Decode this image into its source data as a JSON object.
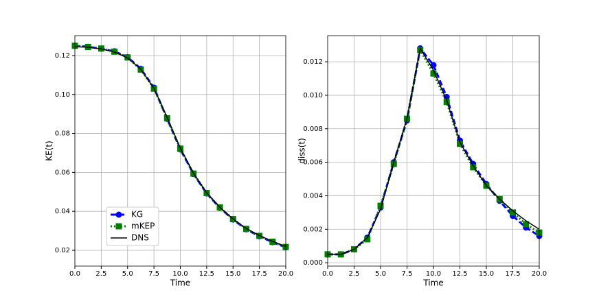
{
  "chart_data": [
    {
      "type": "line",
      "xlabel": "Time",
      "ylabel": "KE(t)",
      "x": [
        0,
        1.25,
        2.5,
        3.75,
        5,
        6.25,
        7.5,
        8.75,
        10,
        11.25,
        12.5,
        13.75,
        15,
        16.25,
        17.5,
        18.75,
        20
      ],
      "series": [
        {
          "name": "KG",
          "color": "#0000ff",
          "values": [
            0.125,
            0.1245,
            0.1235,
            0.1222,
            0.1192,
            0.1132,
            0.1035,
            0.0875,
            0.0718,
            0.0592,
            0.0492,
            0.0418,
            0.0358,
            0.0308,
            0.0272,
            0.0242,
            0.0215
          ]
        },
        {
          "name": "mKEP",
          "color": "#008000",
          "values": [
            0.125,
            0.1244,
            0.1236,
            0.122,
            0.119,
            0.1128,
            0.103,
            0.0878,
            0.0722,
            0.0594,
            0.0494,
            0.042,
            0.036,
            0.031,
            0.0274,
            0.0244,
            0.0217
          ]
        },
        {
          "name": "DNS",
          "color": "#000000",
          "values": [
            0.1245,
            0.1243,
            0.1234,
            0.1218,
            0.1188,
            0.113,
            0.1032,
            0.0882,
            0.0725,
            0.0596,
            0.0495,
            0.0421,
            0.0361,
            0.0312,
            0.0276,
            0.0246,
            0.022
          ]
        }
      ],
      "xlim": [
        0,
        20
      ],
      "ylim": [
        0.0119,
        0.1302
      ],
      "xticks": [
        {
          "value": 0,
          "label": "0.0"
        },
        {
          "value": 2.5,
          "label": "2.5"
        },
        {
          "value": 5,
          "label": "5.0"
        },
        {
          "value": 7.5,
          "label": "7.5"
        },
        {
          "value": 10,
          "label": "10.0"
        },
        {
          "value": 12.5,
          "label": "12.5"
        },
        {
          "value": 15,
          "label": "15.0"
        },
        {
          "value": 17.5,
          "label": "17.5"
        },
        {
          "value": 20,
          "label": "20.0"
        }
      ],
      "yticks": [
        0.02,
        0.04,
        0.06,
        0.08,
        {
          "value": 0.1,
          "label": "0.10"
        },
        0.12
      ],
      "grid": true,
      "legend": "lower left"
    },
    {
      "type": "line",
      "xlabel": "Time",
      "ylabel": "diss(t)",
      "x": [
        0,
        1.25,
        2.5,
        3.75,
        5,
        6.25,
        7.5,
        8.75,
        10,
        11.25,
        12.5,
        13.75,
        15,
        16.25,
        17.5,
        18.75,
        20
      ],
      "series": [
        {
          "color": "#0000ff",
          "values": [
            0.0005,
            0.0005,
            0.0008,
            0.0015,
            0.0033,
            0.006,
            0.0085,
            0.0128,
            0.0118,
            0.0099,
            0.0073,
            0.0059,
            0.0047,
            0.0037,
            0.0028,
            0.0021,
            0.0016
          ]
        },
        {
          "color": "#008000",
          "values": [
            0.0005,
            0.0005,
            0.0008,
            0.0014,
            0.0034,
            0.0059,
            0.0086,
            0.0127,
            0.0113,
            0.0096,
            0.0071,
            0.0057,
            0.0046,
            0.0038,
            0.003,
            0.0023,
            0.0018
          ]
        },
        {
          "color": "#000000",
          "values": [
            0.0005,
            0.0005,
            0.0008,
            0.0015,
            0.0032,
            0.006,
            0.0086,
            0.0128,
            0.0115,
            0.0097,
            0.0072,
            0.0058,
            0.0046,
            0.0038,
            0.0031,
            0.0025,
            0.002
          ]
        }
      ],
      "xlim": [
        0,
        20
      ],
      "ylim": [
        -0.0002,
        0.01356
      ],
      "xticks": [
        {
          "value": 0,
          "label": "0.0"
        },
        {
          "value": 2.5,
          "label": "2.5"
        },
        {
          "value": 5,
          "label": "5.0"
        },
        {
          "value": 7.5,
          "label": "7.5"
        },
        {
          "value": 10,
          "label": "10.0"
        },
        {
          "value": 12.5,
          "label": "12.5"
        },
        {
          "value": 15,
          "label": "15.0"
        },
        {
          "value": 17.5,
          "label": "17.5"
        },
        {
          "value": 20,
          "label": "20.0"
        }
      ],
      "yticks": [
        {
          "value": 0,
          "label": "0.000"
        },
        {
          "value": 0.002,
          "label": "0.002"
        },
        {
          "value": 0.004,
          "label": "0.004"
        },
        {
          "value": 0.006,
          "label": "0.006"
        },
        {
          "value": 0.008,
          "label": "0.008"
        },
        {
          "value": 0.01,
          "label": "0.010"
        },
        {
          "value": 0.012,
          "label": "0.012"
        }
      ],
      "grid": true
    }
  ]
}
